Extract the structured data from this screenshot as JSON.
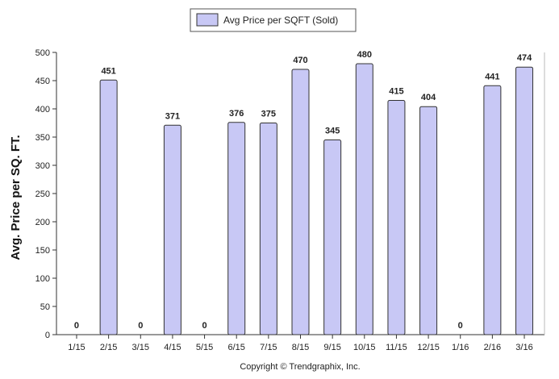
{
  "chart_data": {
    "type": "bar",
    "categories": [
      "1/15",
      "2/15",
      "3/15",
      "4/15",
      "5/15",
      "6/15",
      "7/15",
      "8/15",
      "9/15",
      "10/15",
      "11/15",
      "12/15",
      "1/16",
      "2/16",
      "3/16"
    ],
    "series": [
      {
        "name": "Avg Price per SQFT (Sold)",
        "values": [
          0,
          451,
          0,
          371,
          0,
          376,
          375,
          470,
          345,
          480,
          415,
          404,
          0,
          441,
          474
        ],
        "labels": [
          "0",
          "451",
          "0",
          "371",
          "0",
          "376",
          "375",
          "470",
          "345",
          "480",
          "415",
          "404",
          "0",
          "441",
          "474"
        ]
      }
    ],
    "ylabel": "Avg. Price per SQ. FT.",
    "ylim": [
      0,
      500
    ],
    "yticks": [
      0,
      50,
      100,
      150,
      200,
      250,
      300,
      350,
      400,
      450,
      500
    ],
    "legend": "top-center",
    "grid": false,
    "colors": {
      "bar_fill": "#c8c8f5",
      "bar_stroke": "#333333"
    }
  },
  "copyright": "Copyright © Trendgraphix, Inc."
}
